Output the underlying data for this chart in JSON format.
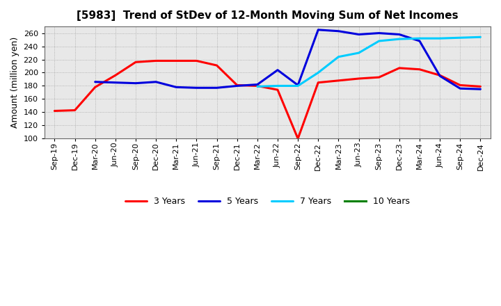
{
  "title": "[5983]  Trend of StDev of 12-Month Moving Sum of Net Incomes",
  "ylabel": "Amount (million yen)",
  "ylim": [
    100,
    270
  ],
  "yticks": [
    100,
    120,
    140,
    160,
    180,
    200,
    220,
    240,
    260
  ],
  "plot_bg_color": "#e8e8e8",
  "fig_bg_color": "#ffffff",
  "x_labels": [
    "Sep-19",
    "Dec-19",
    "Mar-20",
    "Jun-20",
    "Sep-20",
    "Dec-20",
    "Mar-21",
    "Jun-21",
    "Sep-21",
    "Dec-21",
    "Mar-22",
    "Jun-22",
    "Sep-22",
    "Dec-22",
    "Mar-23",
    "Jun-23",
    "Sep-23",
    "Dec-23",
    "Mar-24",
    "Jun-24",
    "Sep-24",
    "Dec-24"
  ],
  "series": [
    {
      "name": "3 Years",
      "color": "#ff0000",
      "lw": 2.2,
      "values": [
        142,
        143,
        178,
        196,
        216,
        218,
        218,
        218,
        211,
        181,
        180,
        174,
        100,
        185,
        188,
        191,
        193,
        207,
        205,
        196,
        181,
        179
      ]
    },
    {
      "name": "5 Years",
      "color": "#0000dd",
      "lw": 2.2,
      "values": [
        null,
        null,
        186,
        185,
        184,
        186,
        178,
        177,
        177,
        180,
        182,
        204,
        181,
        265,
        263,
        258,
        260,
        258,
        248,
        195,
        176,
        175
      ]
    },
    {
      "name": "7 Years",
      "color": "#00ccff",
      "lw": 2.2,
      "values": [
        null,
        null,
        null,
        null,
        null,
        null,
        null,
        null,
        null,
        null,
        179,
        180,
        180,
        200,
        224,
        230,
        248,
        251,
        252,
        252,
        253,
        254
      ]
    },
    {
      "name": "10 Years",
      "color": "#008000",
      "lw": 2.2,
      "values": [
        null,
        null,
        null,
        null,
        null,
        null,
        null,
        null,
        null,
        null,
        null,
        null,
        null,
        null,
        null,
        null,
        null,
        null,
        null,
        null,
        null,
        null
      ]
    }
  ],
  "legend_ncol": 4,
  "title_fontsize": 11,
  "axis_label_fontsize": 9,
  "tick_fontsize": 8,
  "grid_color": "#888888",
  "grid_linestyle": ":",
  "grid_linewidth": 0.6
}
